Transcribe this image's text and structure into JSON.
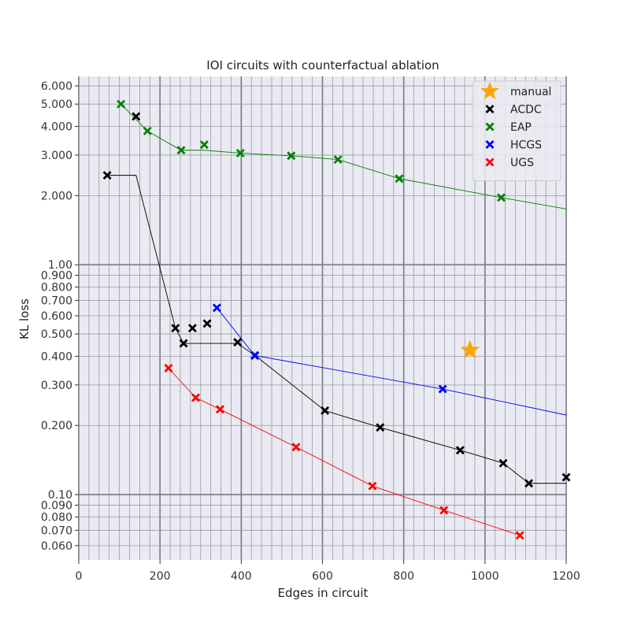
{
  "chart_data": {
    "type": "line",
    "title": "IOI circuits with counterfactual ablation",
    "xlabel": "Edges in circuit",
    "ylabel": "KL loss",
    "xlim": [
      0,
      1200
    ],
    "ylim": [
      0.052,
      6.6
    ],
    "yscale": "log",
    "grid": true,
    "legend_position": "top-right",
    "x_ticks": [
      0,
      200,
      400,
      600,
      800,
      1000,
      1200
    ],
    "x_tick_labels": [
      "0",
      "200",
      "400",
      "600",
      "800",
      "1000",
      "1200"
    ],
    "y_ticks": [
      0.06,
      0.07,
      0.08,
      0.09,
      0.1,
      0.2,
      0.3,
      0.4,
      0.5,
      0.6,
      0.7,
      0.8,
      0.9,
      1.0,
      2.0,
      3.0,
      4.0,
      5.0,
      6.0
    ],
    "y_tick_labels": [
      "0.060",
      "0.070",
      "0.080",
      "0.090",
      "0.10",
      "0.200",
      "0.300",
      "0.400",
      "0.500",
      "0.600",
      "0.700",
      "0.800",
      "0.900",
      "1.00",
      "2.000",
      "3.000",
      "4.000",
      "5.000",
      "6.000"
    ],
    "series": [
      {
        "name": "manual",
        "color": "#FFA500",
        "marker": "star",
        "points": [
          [
            963,
            0.425
          ]
        ],
        "line": []
      },
      {
        "name": "ACDC",
        "color": "#000000",
        "marker": "x",
        "points": [
          [
            70,
            2.45
          ],
          [
            141,
            4.42
          ],
          [
            238,
            0.53
          ],
          [
            258,
            0.455
          ],
          [
            280,
            0.53
          ],
          [
            316,
            0.555
          ],
          [
            391,
            0.46
          ],
          [
            434,
            0.403
          ],
          [
            606,
            0.232
          ],
          [
            742,
            0.196
          ],
          [
            939,
            0.156
          ],
          [
            1045,
            0.137
          ],
          [
            1108,
            0.112
          ],
          [
            1200,
            0.119
          ]
        ],
        "line": [
          [
            70,
            2.45
          ],
          [
            141,
            2.45
          ],
          [
            238,
            0.53
          ],
          [
            258,
            0.455
          ],
          [
            391,
            0.455
          ],
          [
            434,
            0.403
          ],
          [
            606,
            0.232
          ],
          [
            742,
            0.196
          ],
          [
            939,
            0.156
          ],
          [
            1045,
            0.137
          ],
          [
            1108,
            0.112
          ],
          [
            1200,
            0.112
          ]
        ]
      },
      {
        "name": "EAP",
        "color": "#008000",
        "marker": "x",
        "points": [
          [
            104,
            5.0
          ],
          [
            169,
            3.82
          ],
          [
            252,
            3.15
          ],
          [
            309,
            3.33
          ],
          [
            398,
            3.06
          ],
          [
            523,
            2.98
          ],
          [
            638,
            2.87
          ],
          [
            789,
            2.37
          ],
          [
            1040,
            1.96
          ]
        ],
        "line": [
          [
            104,
            5.0
          ],
          [
            169,
            3.82
          ],
          [
            252,
            3.15
          ],
          [
            309,
            3.15
          ],
          [
            398,
            3.06
          ],
          [
            523,
            2.98
          ],
          [
            638,
            2.87
          ],
          [
            789,
            2.37
          ],
          [
            1040,
            1.96
          ],
          [
            1200,
            1.75
          ]
        ]
      },
      {
        "name": "HCGS",
        "color": "#0000FF",
        "marker": "x",
        "points": [
          [
            340,
            0.65
          ],
          [
            433,
            0.403
          ],
          [
            896,
            0.288
          ]
        ],
        "line": [
          [
            340,
            0.65
          ],
          [
            433,
            0.403
          ],
          [
            896,
            0.288
          ],
          [
            1200,
            0.222
          ]
        ]
      },
      {
        "name": "UGS",
        "color": "#FF0000",
        "marker": "x",
        "points": [
          [
            221,
            0.355
          ],
          [
            288,
            0.264
          ],
          [
            348,
            0.235
          ],
          [
            535,
            0.161
          ],
          [
            723,
            0.109
          ],
          [
            899,
            0.0855
          ],
          [
            1086,
            0.0665
          ]
        ],
        "line": [
          [
            221,
            0.355
          ],
          [
            288,
            0.264
          ],
          [
            348,
            0.235
          ],
          [
            535,
            0.161
          ],
          [
            723,
            0.109
          ],
          [
            899,
            0.0855
          ],
          [
            1086,
            0.0665
          ]
        ]
      }
    ]
  }
}
